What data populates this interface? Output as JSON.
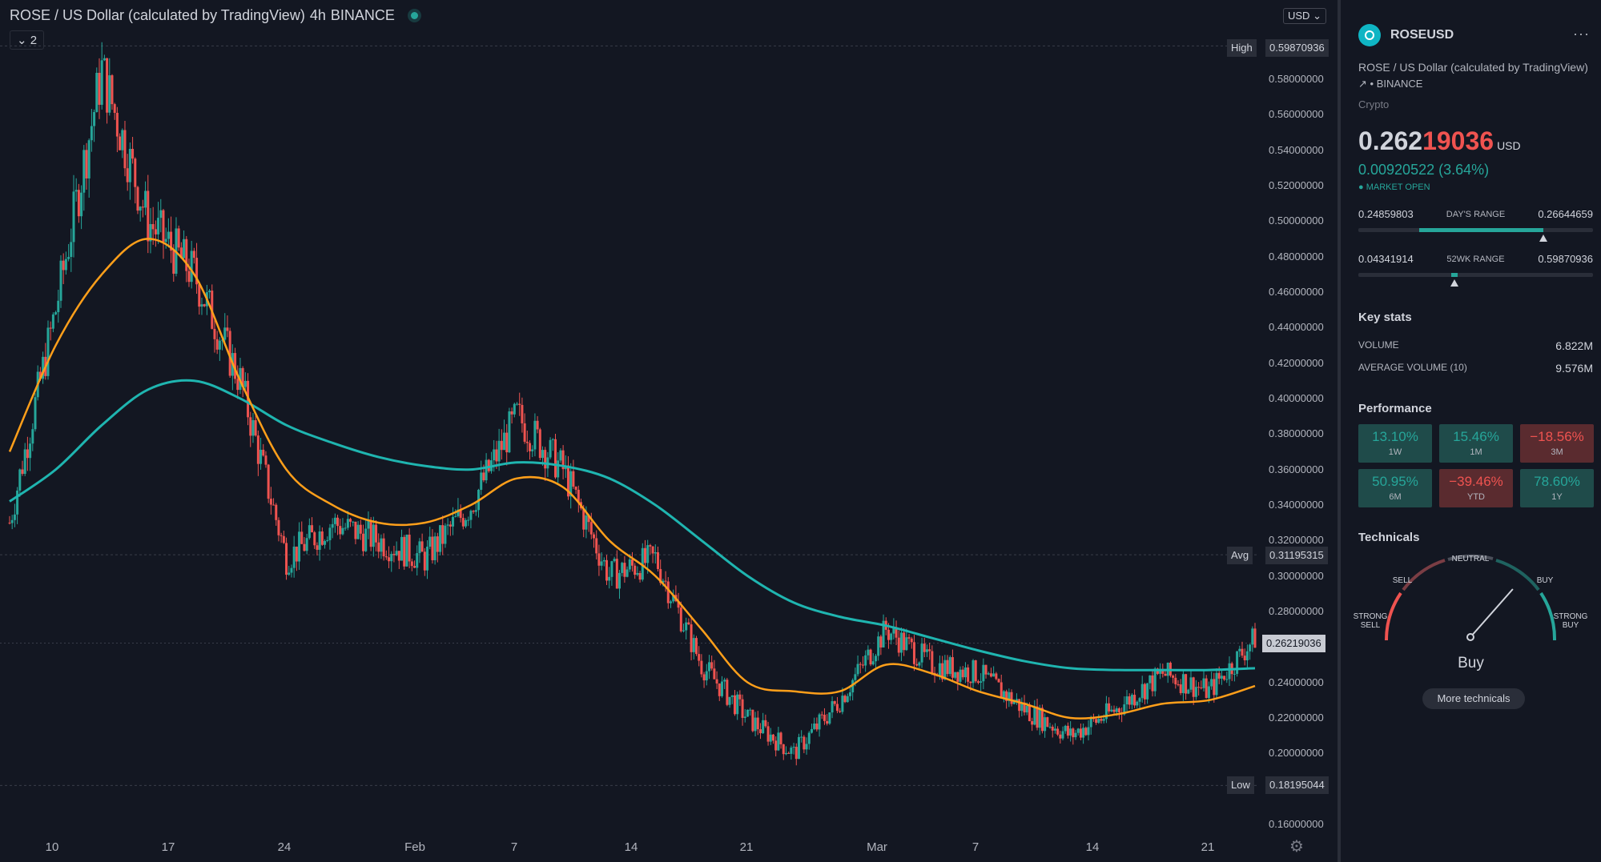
{
  "chart": {
    "title": "ROSE / US Dollar (calculated by TradingView)",
    "interval": "4h",
    "exchange": "BINANCE",
    "indicator_count": "2",
    "currency_button": "USD",
    "y_ticks": [
      "0.58000000",
      "0.56000000",
      "0.54000000",
      "0.52000000",
      "0.50000000",
      "0.48000000",
      "0.46000000",
      "0.44000000",
      "0.42000000",
      "0.40000000",
      "0.38000000",
      "0.36000000",
      "0.34000000",
      "0.32000000",
      "0.30000000",
      "0.28000000",
      "0.24000000",
      "0.22000000",
      "0.20000000",
      "0.16000000"
    ],
    "x_ticks": [
      "10",
      "17",
      "24",
      "Feb",
      "7",
      "14",
      "21",
      "Mar",
      "7",
      "14",
      "21"
    ],
    "high_label": "High",
    "high_value": "0.59870936",
    "avg_label": "Avg",
    "avg_value": "0.31195315",
    "low_label": "Low",
    "low_value": "0.18195044",
    "last_value": "0.26219036",
    "colors": {
      "up": "#26a69a",
      "down": "#ef5350",
      "ma_fast": "#ff9f1a",
      "ma_slow": "#1fb5b0"
    }
  },
  "chart_data": {
    "type": "line",
    "symbol": "ROSEUSD",
    "interval": "4h",
    "ylim": [
      0.16,
      0.6
    ],
    "x": [
      "Jan 10",
      "Jan 13",
      "Jan 15",
      "Jan 17",
      "Jan 20",
      "Jan 22",
      "Jan 24",
      "Jan 27",
      "Jan 30",
      "Feb 1",
      "Feb 4",
      "Feb 7",
      "Feb 10",
      "Feb 14",
      "Feb 17",
      "Feb 20",
      "Feb 22",
      "Feb 25",
      "Feb 28",
      "Mar 2",
      "Mar 5",
      "Mar 8",
      "Mar 11",
      "Mar 14",
      "Mar 17",
      "Mar 19",
      "Mar 21",
      "Mar 23"
    ],
    "series": [
      {
        "values": [
          0.33,
          0.45,
          0.585,
          0.5,
          0.47,
          0.41,
          0.31,
          0.33,
          0.32,
          0.31,
          0.34,
          0.39,
          0.36,
          0.3,
          0.31,
          0.25,
          0.22,
          0.2,
          0.23,
          0.27,
          0.25,
          0.245,
          0.225,
          0.21,
          0.225,
          0.245,
          0.235,
          0.265
        ]
      },
      {
        "values": [
          0.37,
          0.43,
          0.47,
          0.49,
          0.47,
          0.41,
          0.36,
          0.34,
          0.33,
          0.33,
          0.34,
          0.355,
          0.35,
          0.32,
          0.3,
          0.27,
          0.24,
          0.235,
          0.235,
          0.25,
          0.245,
          0.235,
          0.228,
          0.22,
          0.222,
          0.228,
          0.23,
          0.238
        ]
      },
      {
        "values": [
          0.342,
          0.36,
          0.385,
          0.405,
          0.41,
          0.4,
          0.385,
          0.375,
          0.367,
          0.362,
          0.36,
          0.364,
          0.362,
          0.355,
          0.34,
          0.32,
          0.3,
          0.285,
          0.277,
          0.272,
          0.265,
          0.258,
          0.252,
          0.248,
          0.247,
          0.247,
          0.247,
          0.248
        ]
      }
    ],
    "high": 0.59870936,
    "avg": 0.31195315,
    "low": 0.18195044,
    "last": 0.26219036
  },
  "sidebar": {
    "symbol": "ROSEUSD",
    "description": "ROSE / US Dollar (calculated by TradingView)",
    "exchange": "BINANCE",
    "asset_class": "Crypto",
    "price_main": "0.262",
    "price_tail": "19036",
    "price_currency": "USD",
    "change": "0.00920522 (3.64%)",
    "market_status": "MARKET OPEN",
    "days_range": {
      "low": "0.24859803",
      "label": "DAY'S RANGE",
      "high": "0.26644659",
      "position": 0.79
    },
    "wk52_range": {
      "low": "0.04341914",
      "label": "52WK RANGE",
      "high": "0.59870936",
      "position": 0.41
    },
    "key_stats_title": "Key stats",
    "stats": [
      {
        "label": "VOLUME",
        "value": "6.822M"
      },
      {
        "label": "AVERAGE VOLUME (10)",
        "value": "9.576M"
      }
    ],
    "performance_title": "Performance",
    "performance": [
      {
        "value": "13.10%",
        "label": "1W",
        "dir": "pos"
      },
      {
        "value": "15.46%",
        "label": "1M",
        "dir": "pos"
      },
      {
        "value": "−18.56%",
        "label": "3M",
        "dir": "neg"
      },
      {
        "value": "50.95%",
        "label": "6M",
        "dir": "pos"
      },
      {
        "value": "−39.46%",
        "label": "YTD",
        "dir": "neg"
      },
      {
        "value": "78.60%",
        "label": "1Y",
        "dir": "pos"
      }
    ],
    "technicals_title": "Technicals",
    "gauge": {
      "neutral": "NEUTRAL",
      "sell": "SELL",
      "buy": "BUY",
      "strong_sell_1": "STRONG",
      "strong_sell_2": "SELL",
      "strong_buy_1": "STRONG",
      "strong_buy_2": "BUY",
      "verdict": "Buy",
      "needle": 0.73
    },
    "more_technicals": "More technicals"
  }
}
